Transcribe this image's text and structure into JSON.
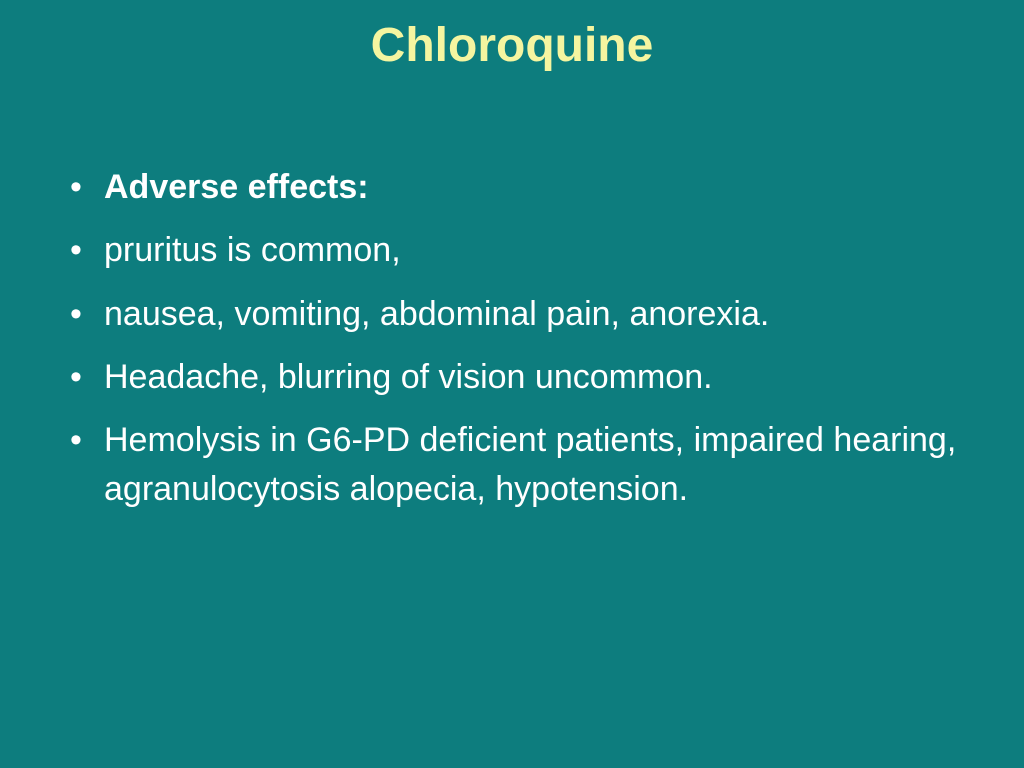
{
  "slide": {
    "title": "Chloroquine",
    "background_color": "#0d7d7e",
    "title_color": "#f5f5a0",
    "text_color": "#ffffff",
    "title_fontsize": 48,
    "body_fontsize": 34,
    "bullets": [
      {
        "text": "Adverse effects:",
        "bold": true
      },
      {
        "text": " pruritus is common,",
        "bold": false
      },
      {
        "text": " nausea, vomiting, abdominal pain, anorexia.",
        "bold": false
      },
      {
        "text": "Headache, blurring of vision uncommon.",
        "bold": false
      },
      {
        "text": "Hemolysis  in G6-PD deficient patients, impaired hearing, agranulocytosis alopecia, hypotension.",
        "bold": false
      }
    ]
  }
}
